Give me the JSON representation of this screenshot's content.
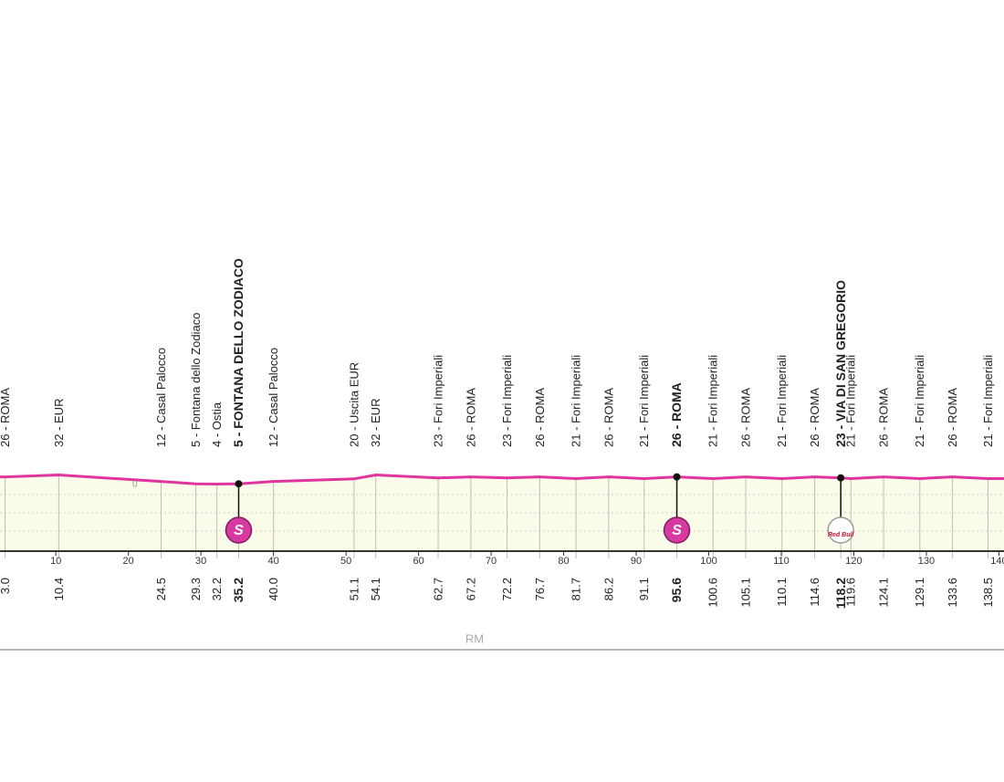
{
  "chart_data": {
    "type": "profile",
    "x": [
      3.0,
      10.4,
      24.5,
      29.3,
      32.2,
      35.2,
      40.0,
      51.1,
      54.1,
      62.7,
      67.2,
      72.2,
      76.7,
      81.7,
      86.2,
      91.1,
      95.6,
      100.6,
      105.1,
      110.1,
      114.6,
      118.2,
      119.6,
      124.1,
      129.1,
      133.6,
      138.5
    ],
    "x_labels": [
      "3.0",
      "10.4",
      "24.5",
      "29.3",
      "32.2",
      "35.2",
      "40.0",
      "51.1",
      "54.1",
      "62.7",
      "67.2",
      "72.2",
      "76.7",
      "81.7",
      "86.2",
      "91.1",
      "95.6",
      "100.6",
      "105.1",
      "110.1",
      "114.6",
      "118.2",
      "119.6",
      "124.1",
      "129.1",
      "133.6",
      "138.5"
    ],
    "values": [
      26,
      32,
      12,
      5,
      4,
      5,
      12,
      20,
      32,
      23,
      26,
      23,
      26,
      21,
      26,
      21,
      26,
      21,
      26,
      21,
      26,
      23,
      21,
      26,
      21,
      26,
      21
    ],
    "point_labels": [
      "26 - ROMA",
      "32 - EUR",
      "12 - Casal Palocco",
      "5 - Fontana dello Zodiaco",
      "4 - Ostia",
      "5 - FONTANA DELLO ZODIACO",
      "12 - Casal Palocco",
      "20 - Uscita EUR",
      "32 - EUR",
      "23 - Fori Imperiali",
      "26 - ROMA",
      "23 - Fori Imperiali",
      "26 - ROMA",
      "21 - Fori Imperiali",
      "26 - ROMA",
      "21 - Fori Imperiali",
      "26 - ROMA",
      "21 - Fori Imperiali",
      "26 - ROMA",
      "21 - Fori Imperiali",
      "26 - ROMA",
      "23 - VIA DI SAN GREGORIO",
      "21 - Fori Imperiali",
      "26 - ROMA",
      "21 - Fori Imperiali",
      "26 - ROMA",
      "21 - Fori Imperiali"
    ],
    "color": "#e0359e",
    "markers": [
      {
        "x": 35.2,
        "symbol": "S"
      },
      {
        "x": 95.6,
        "symbol": "S"
      },
      {
        "x": 118.2,
        "symbol": "Red Bull"
      }
    ],
    "annotations": [
      {
        "x": 20.9,
        "text": "0"
      }
    ],
    "xlim": [
      2.3,
      140.7
    ],
    "xticks": [
      10,
      20,
      30,
      40,
      50,
      60,
      70,
      80,
      90,
      100,
      110,
      120,
      130,
      140
    ],
    "ylim": [
      -200,
      100
    ],
    "footer": "RM"
  }
}
